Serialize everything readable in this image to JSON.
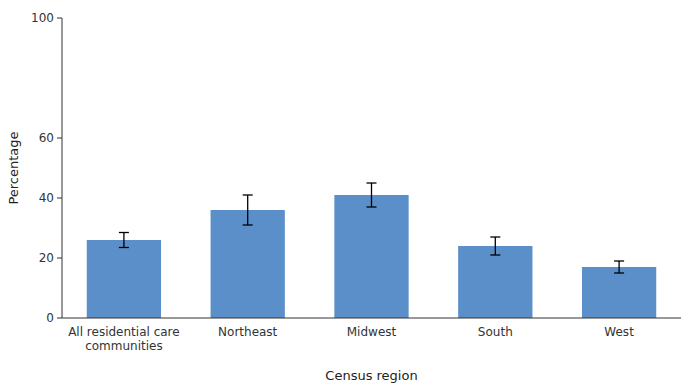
{
  "chart_data": {
    "type": "bar",
    "categories": [
      "All residential care\ncommunities",
      "Northeast",
      "Midwest",
      "South",
      "West"
    ],
    "values": [
      26,
      36,
      41,
      24,
      17
    ],
    "errors": [
      2.5,
      5.0,
      4.0,
      3.0,
      2.0
    ],
    "color": "#5b8fc9",
    "xlabel": "Census region",
    "ylabel": "Percentage",
    "ylim": [
      0,
      100
    ],
    "yticks": [
      0,
      20,
      40,
      60,
      100
    ],
    "grid": false
  }
}
